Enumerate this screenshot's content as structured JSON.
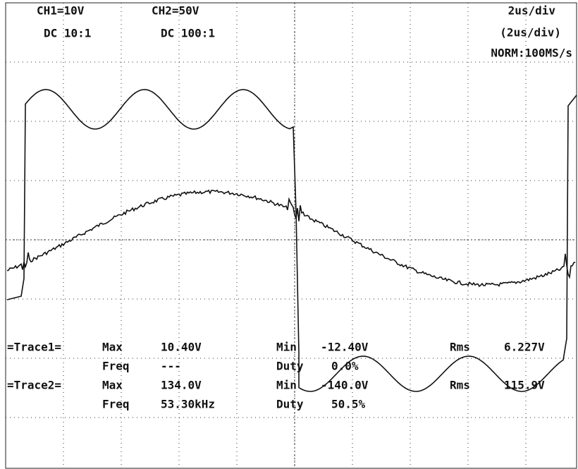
{
  "header": {
    "ch1": "CH1=10V",
    "ch1_coupling": "DC  10:1",
    "ch2": "CH2=50V",
    "ch2_coupling": "DC  100:1",
    "timebase": "2us/div",
    "timebase_ref": "(2us/div)",
    "sampling": "NORM:100MS/s"
  },
  "measurements": [
    {
      "trace": "=Trace1=",
      "max_label": "Max",
      "max": "10.40V",
      "min_label": "Min",
      "min": "-12.40V",
      "rms_label": "Rms",
      "rms": "6.227V"
    },
    {
      "freq_label": "Freq",
      "freq": "---",
      "duty_label": "Duty",
      "duty": "0.0%"
    },
    {
      "trace": "=Trace2=",
      "max_label": "Max",
      "max": "134.0V",
      "min_label": "Min",
      "min": "-140.0V",
      "rms_label": "Rms",
      "rms": "115.9V"
    },
    {
      "freq_label": "Freq",
      "freq": "53.30kHz",
      "duty_label": "Duty",
      "duty": "50.5%"
    }
  ]
}
